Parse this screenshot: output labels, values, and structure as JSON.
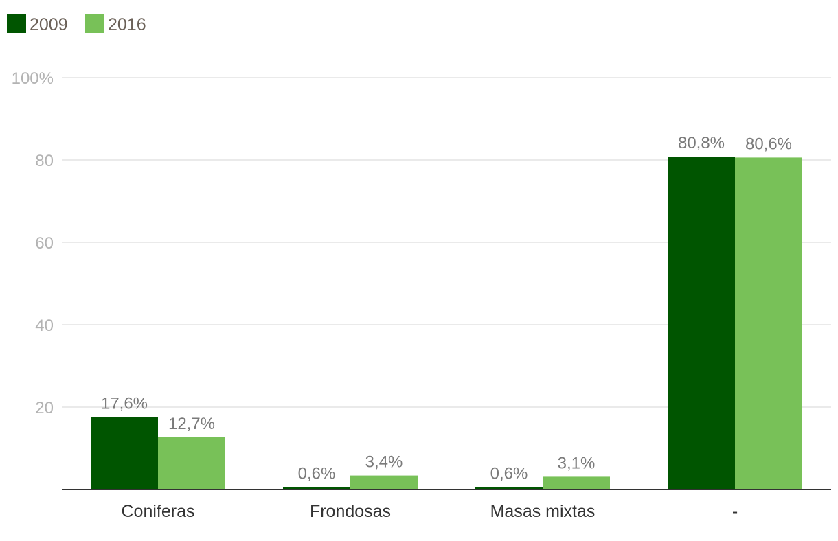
{
  "chart_data": {
    "type": "bar",
    "categories": [
      "Coniferas",
      "Frondosas",
      "Masas mixtas",
      "-"
    ],
    "series": [
      {
        "name": "2009",
        "color": "#005500",
        "values": [
          17.6,
          0.6,
          0.6,
          80.8
        ],
        "labels": [
          "17,6%",
          "0,6%",
          "0,6%",
          "80,8%"
        ]
      },
      {
        "name": "2016",
        "color": "#78c158",
        "values": [
          12.7,
          3.4,
          3.1,
          80.6
        ],
        "labels": [
          "12,7%",
          "3,4%",
          "3,1%",
          "80,6%"
        ]
      }
    ],
    "yticks": [
      {
        "value": 100,
        "label": "100%"
      },
      {
        "value": 80,
        "label": "80"
      },
      {
        "value": 60,
        "label": "60"
      },
      {
        "value": 40,
        "label": "40"
      },
      {
        "value": 20,
        "label": "20"
      }
    ],
    "ylim": [
      0,
      100
    ],
    "grid": true,
    "legend_position": "top-left",
    "title": "",
    "xlabel": "",
    "ylabel": ""
  }
}
